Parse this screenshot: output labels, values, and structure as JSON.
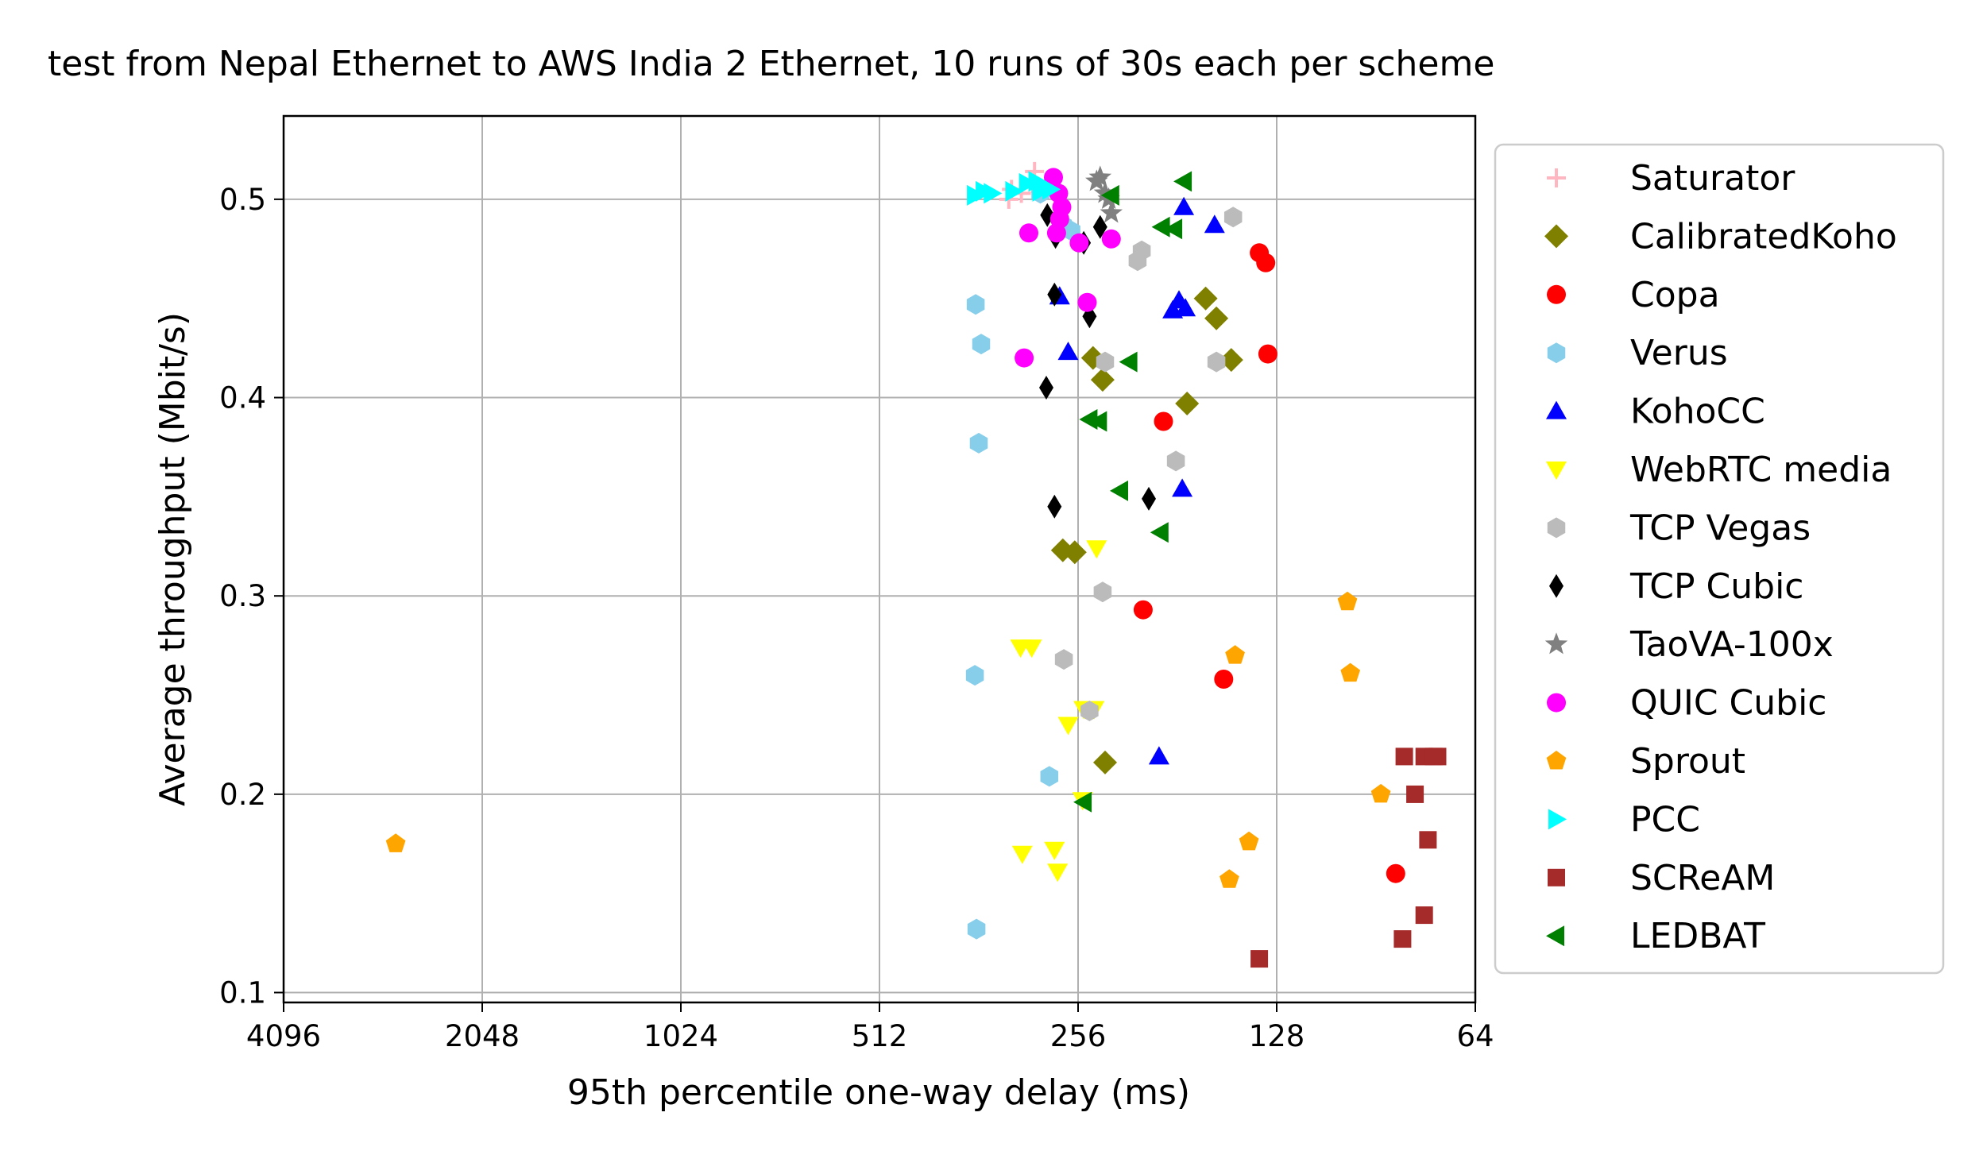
{
  "chart_data": {
    "type": "scatter",
    "title": "test from Nepal Ethernet to AWS India 2 Ethernet, 10 runs of 30s each per scheme",
    "xlabel": "95th percentile one-way delay (ms)",
    "ylabel": "Average throughput (Mbit/s)",
    "xscale": "log2",
    "xaxis_inverted": true,
    "xlim": [
      4096,
      64
    ],
    "ylim": [
      0.095,
      0.542
    ],
    "xticks": [
      4096,
      2048,
      1024,
      512,
      256,
      128,
      64
    ],
    "xtick_labels": [
      "4096",
      "2048",
      "1024",
      "512",
      "256",
      "128",
      "64"
    ],
    "yticks": [
      0.1,
      0.2,
      0.3,
      0.4,
      0.5
    ],
    "ytick_labels": [
      "0.1",
      "0.2",
      "0.3",
      "0.4",
      "0.5"
    ],
    "grid": true,
    "legend_position": "outside-right",
    "series": [
      {
        "name": "Saturator",
        "color": "#ffb6c1",
        "marker": "plus",
        "points": [
          [
            298,
            0.514
          ],
          [
            312,
            0.503
          ],
          [
            323,
            0.505
          ],
          [
            326,
            0.5
          ],
          [
            300,
            0.508
          ]
        ]
      },
      {
        "name": "CalibratedKoho",
        "color": "#808000",
        "marker": "diamond",
        "points": [
          [
            270,
            0.323
          ],
          [
            259,
            0.322
          ],
          [
            243,
            0.42
          ],
          [
            235,
            0.409
          ],
          [
            164,
            0.45
          ],
          [
            158,
            0.44
          ],
          [
            150,
            0.419
          ],
          [
            175,
            0.397
          ],
          [
            233,
            0.216
          ]
        ]
      },
      {
        "name": "Copa",
        "color": "#ff0000",
        "marker": "circle",
        "points": [
          [
            136,
            0.473
          ],
          [
            133,
            0.468
          ],
          [
            132,
            0.422
          ],
          [
            190,
            0.388
          ],
          [
            204,
            0.293
          ],
          [
            154,
            0.258
          ],
          [
            84.5,
            0.16
          ]
        ]
      },
      {
        "name": "Verus",
        "color": "#87ceeb",
        "marker": "hexagon",
        "points": [
          [
            366,
            0.447
          ],
          [
            359,
            0.427
          ],
          [
            362,
            0.377
          ],
          [
            367,
            0.26
          ],
          [
            365,
            0.132
          ],
          [
            283,
            0.209
          ],
          [
            292,
            0.503
          ],
          [
            270,
            0.487
          ],
          [
            262,
            0.484
          ]
        ]
      },
      {
        "name": "KohoCC",
        "color": "#0000ff",
        "marker": "triangle-up",
        "points": [
          [
            177,
            0.496
          ],
          [
            159,
            0.487
          ],
          [
            180,
            0.449
          ],
          [
            176,
            0.445
          ],
          [
            184,
            0.444
          ],
          [
            273,
            0.451
          ],
          [
            265,
            0.423
          ],
          [
            178,
            0.354
          ],
          [
            193,
            0.219
          ]
        ]
      },
      {
        "name": "WebRTC media",
        "color": "#ffff00",
        "marker": "triangle-down",
        "points": [
          [
            240,
            0.324
          ],
          [
            251,
            0.243
          ],
          [
            242,
            0.243
          ],
          [
            265,
            0.235
          ],
          [
            301,
            0.274
          ],
          [
            313,
            0.274
          ],
          [
            252,
            0.197
          ],
          [
            278,
            0.172
          ],
          [
            275,
            0.161
          ],
          [
            311,
            0.17
          ]
        ]
      },
      {
        "name": "TCP Vegas",
        "color": "#bbbbbb",
        "marker": "hexagon",
        "points": [
          [
            149,
            0.491
          ],
          [
            205,
            0.474
          ],
          [
            208,
            0.469
          ],
          [
            233,
            0.418
          ],
          [
            158,
            0.418
          ],
          [
            182,
            0.368
          ],
          [
            235,
            0.302
          ],
          [
            269,
            0.268
          ],
          [
            246,
            0.242
          ]
        ]
      },
      {
        "name": "TCP Cubic",
        "color": "#000000",
        "marker": "thin-diamond",
        "points": [
          [
            285,
            0.492
          ],
          [
            277,
            0.481
          ],
          [
            251,
            0.478
          ],
          [
            237,
            0.486
          ],
          [
            278,
            0.452
          ],
          [
            246,
            0.441
          ],
          [
            286,
            0.405
          ],
          [
            278,
            0.345
          ],
          [
            200,
            0.349
          ]
        ]
      },
      {
        "name": "TaoVA-100x",
        "color": "#808080",
        "marker": "star",
        "points": [
          [
            237,
            0.511
          ],
          [
            230,
            0.5
          ],
          [
            228,
            0.493
          ],
          [
            233,
            0.503
          ],
          [
            240,
            0.509
          ]
        ]
      },
      {
        "name": "QUIC Cubic",
        "color": "#ff00ff",
        "marker": "circle",
        "points": [
          [
            279,
            0.511
          ],
          [
            274,
            0.503
          ],
          [
            271,
            0.496
          ],
          [
            273,
            0.49
          ],
          [
            276,
            0.483
          ],
          [
            304,
            0.483
          ],
          [
            255,
            0.478
          ],
          [
            228,
            0.48
          ],
          [
            248,
            0.448
          ],
          [
            309,
            0.42
          ]
        ]
      },
      {
        "name": "Sprout",
        "color": "#ffa500",
        "marker": "pentagon",
        "points": [
          [
            2770,
            0.175
          ],
          [
            100,
            0.297
          ],
          [
            99,
            0.261
          ],
          [
            89,
            0.2
          ],
          [
            148,
            0.27
          ],
          [
            151,
            0.157
          ],
          [
            141,
            0.176
          ]
        ]
      },
      {
        "name": "PCC",
        "color": "#00ffff",
        "marker": "triangle-right",
        "points": [
          [
            367,
            0.502
          ],
          [
            356,
            0.504
          ],
          [
            346,
            0.503
          ],
          [
            321,
            0.504
          ],
          [
            306,
            0.508
          ],
          [
            296,
            0.509
          ],
          [
            287,
            0.506
          ],
          [
            282,
            0.505
          ],
          [
            292,
            0.504
          ]
        ]
      },
      {
        "name": "SCReAM",
        "color": "#a52a2a",
        "marker": "square",
        "points": [
          [
            82,
            0.219
          ],
          [
            76.5,
            0.219
          ],
          [
            74,
            0.219
          ],
          [
            73,
            0.219
          ],
          [
            79,
            0.2
          ],
          [
            75.5,
            0.177
          ],
          [
            76.5,
            0.139
          ],
          [
            82.5,
            0.127
          ],
          [
            136,
            0.117
          ]
        ]
      },
      {
        "name": "LEDBAT",
        "color": "#008000",
        "marker": "triangle-left",
        "points": [
          [
            228,
            0.502
          ],
          [
            177,
            0.509
          ],
          [
            191,
            0.486
          ],
          [
            183,
            0.485
          ],
          [
            214,
            0.418
          ],
          [
            246,
            0.389
          ],
          [
            238,
            0.388
          ],
          [
            221,
            0.353
          ],
          [
            192,
            0.332
          ],
          [
            251,
            0.196
          ]
        ]
      }
    ]
  }
}
